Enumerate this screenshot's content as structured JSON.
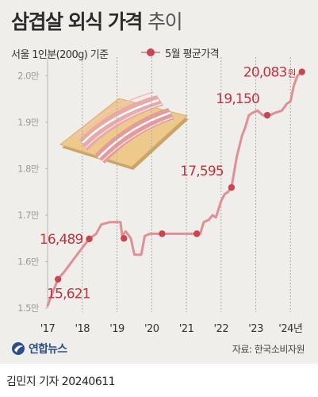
{
  "header": {
    "title": "삼겹살 외식 가격",
    "title_suffix": "추이",
    "subtitle": "서울 1인분(200g) 기준",
    "legend_label": "5월 평균가격"
  },
  "chart_data": {
    "type": "line",
    "ylim": [
      15000,
      20400
    ],
    "y_ticks": [
      {
        "value": 15000,
        "label": "1.5만"
      },
      {
        "value": 16000,
        "label": "1.6만"
      },
      {
        "value": 17000,
        "label": "1.7만"
      },
      {
        "value": 18000,
        "label": "1.8만"
      },
      {
        "value": 19000,
        "label": "1.9만"
      },
      {
        "value": 20000,
        "label": "2.0만"
      }
    ],
    "x_ticks": [
      {
        "value": 2017,
        "label": "'17"
      },
      {
        "value": 2018,
        "label": "'18"
      },
      {
        "value": 2019,
        "label": "'19"
      },
      {
        "value": 2020,
        "label": "'20"
      },
      {
        "value": 2021,
        "label": "'21"
      },
      {
        "value": 2022,
        "label": "'22"
      },
      {
        "value": 2023,
        "label": "'23"
      },
      {
        "value": 2024,
        "label": "'24년"
      }
    ],
    "xlim": [
      2017,
      2024.45
    ],
    "series": [
      {
        "values": [
          [
            2017.0,
            15050
          ],
          [
            2017.1,
            15250
          ],
          [
            2017.3,
            15621
          ],
          [
            2017.5,
            15800
          ],
          [
            2017.65,
            15950
          ],
          [
            2017.8,
            16100
          ],
          [
            2017.95,
            16250
          ],
          [
            2018.2,
            16489
          ],
          [
            2018.4,
            16600
          ],
          [
            2018.55,
            16800
          ],
          [
            2018.8,
            16850
          ],
          [
            2019.1,
            16850
          ],
          [
            2019.15,
            16550
          ],
          [
            2019.25,
            16650
          ],
          [
            2019.4,
            16500
          ],
          [
            2019.5,
            16150
          ],
          [
            2019.7,
            16150
          ],
          [
            2019.8,
            16550
          ],
          [
            2019.95,
            16600
          ],
          [
            2020.1,
            16600
          ],
          [
            2020.3,
            16600
          ],
          [
            2020.5,
            16600
          ],
          [
            2020.75,
            16600
          ],
          [
            2021.0,
            16600
          ],
          [
            2021.2,
            16600
          ],
          [
            2021.4,
            16600
          ],
          [
            2021.5,
            16850
          ],
          [
            2021.65,
            16900
          ],
          [
            2021.75,
            17000
          ],
          [
            2021.85,
            16950
          ],
          [
            2022.0,
            17300
          ],
          [
            2022.1,
            17450
          ],
          [
            2022.2,
            17500
          ],
          [
            2022.3,
            17600
          ],
          [
            2022.45,
            18250
          ],
          [
            2022.6,
            18700
          ],
          [
            2022.7,
            18900
          ],
          [
            2022.8,
            19150
          ],
          [
            2022.9,
            19200
          ],
          [
            2023.05,
            19250
          ],
          [
            2023.2,
            19150
          ],
          [
            2023.4,
            19150
          ],
          [
            2023.55,
            19200
          ],
          [
            2023.75,
            19250
          ],
          [
            2023.9,
            19400
          ],
          [
            2024.0,
            19450
          ],
          [
            2024.1,
            19800
          ],
          [
            2024.2,
            20000
          ],
          [
            2024.33,
            20083
          ]
        ],
        "markers": [
          [
            2017.3,
            15621
          ],
          [
            2018.2,
            16489
          ],
          [
            2019.2,
            16500
          ],
          [
            2020.3,
            16600
          ],
          [
            2021.3,
            16600
          ],
          [
            2022.3,
            17595
          ],
          [
            2023.33,
            19150
          ],
          [
            2024.33,
            20083
          ]
        ]
      }
    ],
    "annotations": [
      {
        "x": 2017.3,
        "y": 15621,
        "label": "15,621",
        "position": "below-right"
      },
      {
        "x": 2018.2,
        "y": 16489,
        "label": "16,489",
        "position": "left"
      },
      {
        "x": 2022.3,
        "y": 17595,
        "label": "17,595",
        "position": "above-left"
      },
      {
        "x": 2023.33,
        "y": 19150,
        "label": "19,150",
        "position": "above-left"
      },
      {
        "x": 2024.33,
        "y": 20083,
        "label": "20,083",
        "unit": "원",
        "position": "left"
      }
    ],
    "grid": {
      "vertical": true,
      "horizontal": false
    }
  },
  "footer": {
    "logo_text": "연합뉴스",
    "source": "자료: 한국소비자원",
    "credit": "김민지 기자  20240611"
  },
  "colors": {
    "line": "#e08f94",
    "marker": "#c7464f",
    "label": "#c0323e",
    "background": "#f0eeea",
    "board": "#edc98c",
    "logo": "#2a4f8a"
  },
  "icons": {
    "illustration": "pork-belly-on-board-icon",
    "logo": "yonhap-logo-icon"
  }
}
